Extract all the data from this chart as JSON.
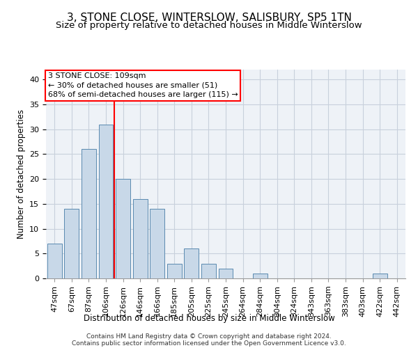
{
  "title": "3, STONE CLOSE, WINTERSLOW, SALISBURY, SP5 1TN",
  "subtitle": "Size of property relative to detached houses in Middle Winterslow",
  "xlabel": "Distribution of detached houses by size in Middle Winterslow",
  "ylabel": "Number of detached properties",
  "footer1": "Contains HM Land Registry data © Crown copyright and database right 2024.",
  "footer2": "Contains public sector information licensed under the Open Government Licence v3.0.",
  "annotation_line1": "3 STONE CLOSE: 109sqm",
  "annotation_line2": "← 30% of detached houses are smaller (51)",
  "annotation_line3": "68% of semi-detached houses are larger (115) →",
  "bar_labels": [
    "47sqm",
    "67sqm",
    "87sqm",
    "106sqm",
    "126sqm",
    "146sqm",
    "166sqm",
    "185sqm",
    "205sqm",
    "225sqm",
    "245sqm",
    "264sqm",
    "284sqm",
    "304sqm",
    "324sqm",
    "343sqm",
    "363sqm",
    "383sqm",
    "403sqm",
    "422sqm",
    "442sqm"
  ],
  "bar_values": [
    7,
    14,
    26,
    31,
    20,
    16,
    14,
    3,
    6,
    3,
    2,
    0,
    1,
    0,
    0,
    0,
    0,
    0,
    0,
    1,
    0
  ],
  "bar_color": "#c8d8e8",
  "bar_edge_color": "#5a8ab0",
  "red_line_x": 3.5,
  "ylim": [
    0,
    42
  ],
  "yticks": [
    0,
    5,
    10,
    15,
    20,
    25,
    30,
    35,
    40
  ],
  "bg_color": "#eef2f7",
  "grid_color": "#c8d0dc",
  "title_fontsize": 11,
  "subtitle_fontsize": 9.5,
  "xlabel_fontsize": 8.5,
  "ylabel_fontsize": 8.5,
  "tick_fontsize": 8,
  "annotation_fontsize": 8,
  "footer_fontsize": 6.5
}
